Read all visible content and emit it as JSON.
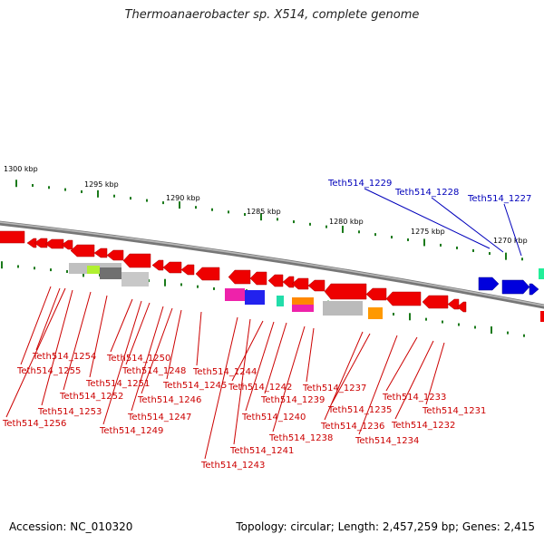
{
  "title": "Thermoanaerobacter sp. X514, complete genome",
  "footer": {
    "accession": "Accession: NC_010320",
    "summary": "Topology: circular; Length: 2,457,259 bp; Genes: 2,415"
  },
  "colors": {
    "reverse_gene": "#ee0000",
    "forward_gene": "#0000dd",
    "forward_label": "#0000bb",
    "reverse_label": "#cc0000",
    "backbone": "#777777",
    "tick": "#1b7a1b"
  },
  "scale_labels": [
    "1300 kbp",
    "1295 kbp",
    "1290 kbp",
    "1285 kbp",
    "1280 kbp",
    "1275 kbp",
    "1270 kbp"
  ],
  "forward_genes": [
    "Teth514_1229",
    "Teth514_1228",
    "Teth514_1227"
  ],
  "reverse_genes": [
    "Teth514_1254",
    "Teth514_1255",
    "Teth514_1251",
    "Teth514_1252",
    "Teth514_1253",
    "Teth514_1256",
    "Teth514_1250",
    "Teth514_1248",
    "Teth514_1246",
    "Teth514_1247",
    "Teth514_1249",
    "Teth514_1244",
    "Teth514_1245",
    "Teth514_1242",
    "Teth514_1239",
    "Teth514_1240",
    "Teth514_1241",
    "Teth514_1243",
    "Teth514_1237",
    "Teth514_1238",
    "Teth514_1235",
    "Teth514_1236",
    "Teth514_1234",
    "Teth514_1233",
    "Teth514_1232",
    "Teth514_1231"
  ]
}
